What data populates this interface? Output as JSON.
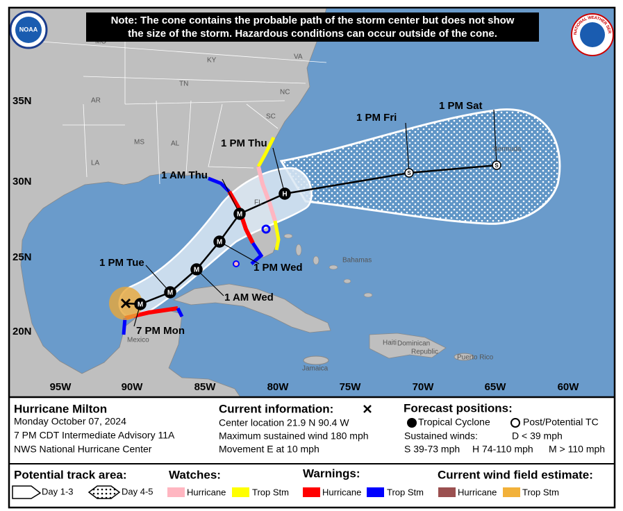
{
  "note": [
    "Note: The cone contains the probable path of the storm center but does not show",
    "the size of the storm. Hazardous conditions can occur outside of the cone."
  ],
  "logos": [
    "NOAA",
    "NATIONAL WEATHER SERVICE"
  ],
  "map": {
    "lon_labels": [
      "95W",
      "90W",
      "85W",
      "80W",
      "75W",
      "70W",
      "65W",
      "60W"
    ],
    "lat_labels": [
      "35N",
      "30N",
      "25N",
      "20N"
    ],
    "places": [
      "MO",
      "KY",
      "VA",
      "TN",
      "NC",
      "AR",
      "SC",
      "MS",
      "AL",
      "LA",
      "FL",
      "Bermuda",
      "Bahamas",
      "Mexico",
      "Haiti",
      "Dominican",
      "Republic",
      "Puerto Rico",
      "Jamaica"
    ],
    "forecast_labels": [
      "1 PM Sat",
      "1 PM Fri",
      "1 PM Thu",
      "1 AM Thu",
      "1 PM Wed",
      "1 AM Wed",
      "1 PM Tue",
      "7 PM Mon"
    ],
    "point_symbols": [
      "S",
      "S",
      "H",
      "M",
      "M",
      "M",
      "M",
      "M"
    ]
  },
  "info": {
    "storm": "Hurricane Milton",
    "date": "Monday October 07, 2024",
    "advisory": "7 PM CDT Intermediate Advisory 11A",
    "center": "NWS National Hurricane Center",
    "current_title": "Current information:",
    "current": [
      "Center location 21.9 N 90.4 W",
      "Maximum sustained wind 180 mph",
      "Movement E at 10 mph"
    ],
    "forecast_title": "Forecast positions:",
    "tropical": "Tropical Cyclone",
    "post": "Post/Potential TC",
    "winds_title": "Sustained winds:",
    "winds": [
      "D < 39 mph",
      "S 39-73 mph",
      "H 74-110 mph",
      "M > 110 mph"
    ]
  },
  "legend": {
    "track_title": "Potential track area:",
    "day13": "Day 1-3",
    "day45": "Day 4-5",
    "watches_title": "Watches:",
    "watches": [
      "Hurricane",
      "Trop Stm"
    ],
    "warnings_title": "Warnings:",
    "warnings": [
      "Hurricane",
      "Trop Stm"
    ],
    "wind_title": "Current wind field estimate:",
    "wind": [
      "Hurricane",
      "Trop Stm"
    ]
  }
}
